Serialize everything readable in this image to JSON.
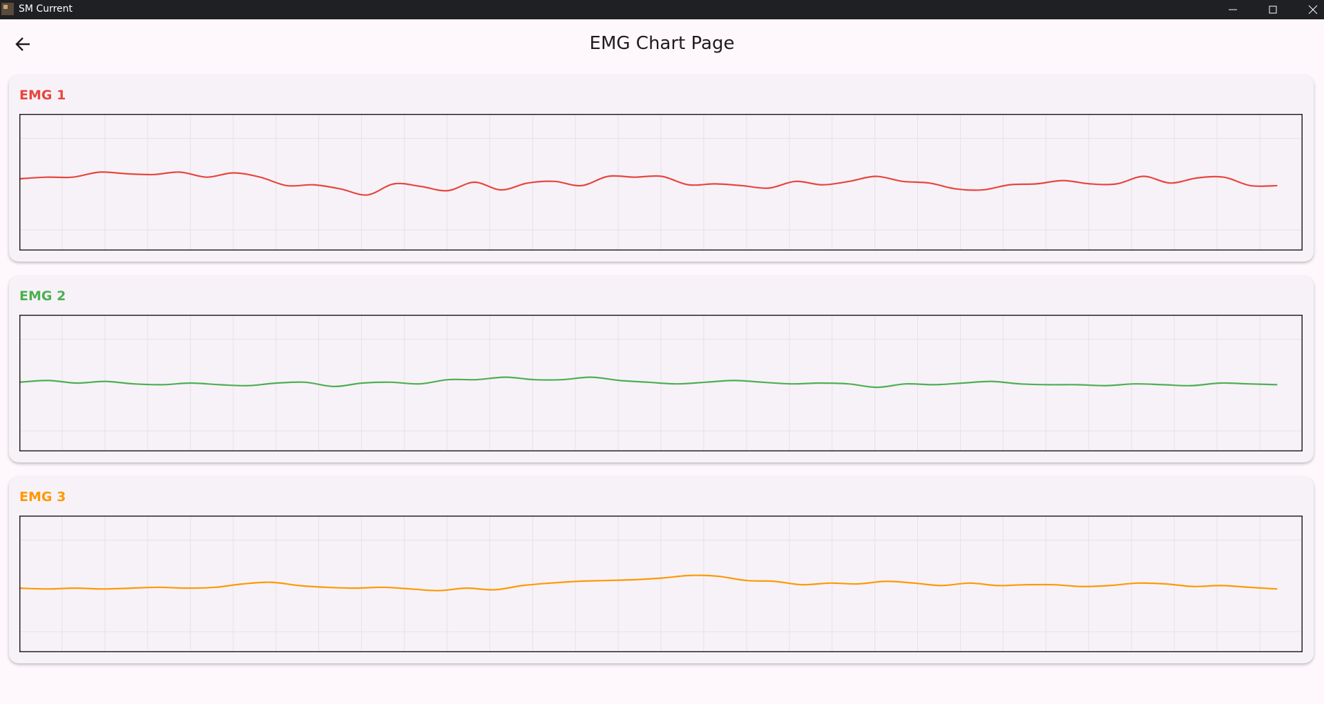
{
  "window": {
    "title": "SM Current"
  },
  "header": {
    "title": "EMG Chart Page"
  },
  "charts": [
    {
      "type": "line",
      "title": "EMG 1",
      "color": "#e8453c",
      "ylim": [
        0,
        100
      ],
      "values": [
        52.5,
        53.7,
        53.7,
        57.4,
        56.2,
        55.6,
        57.4,
        53.7,
        56.8,
        53.7,
        47.5,
        48.1,
        45.1,
        40.7,
        48.8,
        46.9,
        43.8,
        50,
        44.4,
        49.4,
        50.6,
        47.5,
        54.3,
        53.7,
        54.3,
        48.1,
        48.8,
        47.5,
        45.7,
        50.6,
        48.1,
        50.6,
        54.3,
        50.6,
        49.4,
        45.1,
        44.4,
        48.1,
        48.8,
        51.2,
        48.8,
        48.8,
        54.3,
        49.4,
        53.1,
        53.7,
        47.5,
        47.5
      ]
    },
    {
      "type": "line",
      "title": "EMG 2",
      "color": "#4caf50",
      "ylim": [
        0,
        100
      ],
      "values": [
        50.6,
        51.9,
        50,
        51.2,
        49.4,
        48.8,
        50,
        48.8,
        48.1,
        50,
        50.6,
        47.5,
        50,
        50.6,
        49.4,
        52.5,
        52.5,
        54.3,
        52.5,
        52.5,
        54.3,
        51.9,
        50.6,
        49.4,
        50.6,
        51.9,
        50.6,
        49.4,
        50,
        49.4,
        46.9,
        49.4,
        48.8,
        50,
        51.2,
        49.4,
        48.8,
        48.8,
        48.1,
        49.4,
        48.8,
        48.1,
        50,
        49.4,
        48.8
      ]
    },
    {
      "type": "line",
      "title": "EMG 3",
      "color": "#ff9800",
      "ylim": [
        0,
        100
      ],
      "values": [
        46.9,
        46.3,
        46.9,
        46.3,
        46.9,
        47.5,
        46.9,
        47.5,
        50,
        51.2,
        48.8,
        47.5,
        46.9,
        47.5,
        46.3,
        45.1,
        46.9,
        45.7,
        48.8,
        50.6,
        51.9,
        52.5,
        53.1,
        54.3,
        56.2,
        55.6,
        52.5,
        51.9,
        49.4,
        50.6,
        50,
        51.9,
        50.6,
        48.8,
        50.6,
        48.8,
        49.4,
        49.4,
        48.1,
        48.8,
        50.6,
        50,
        48.1,
        48.8,
        47.5,
        46.3
      ]
    }
  ]
}
